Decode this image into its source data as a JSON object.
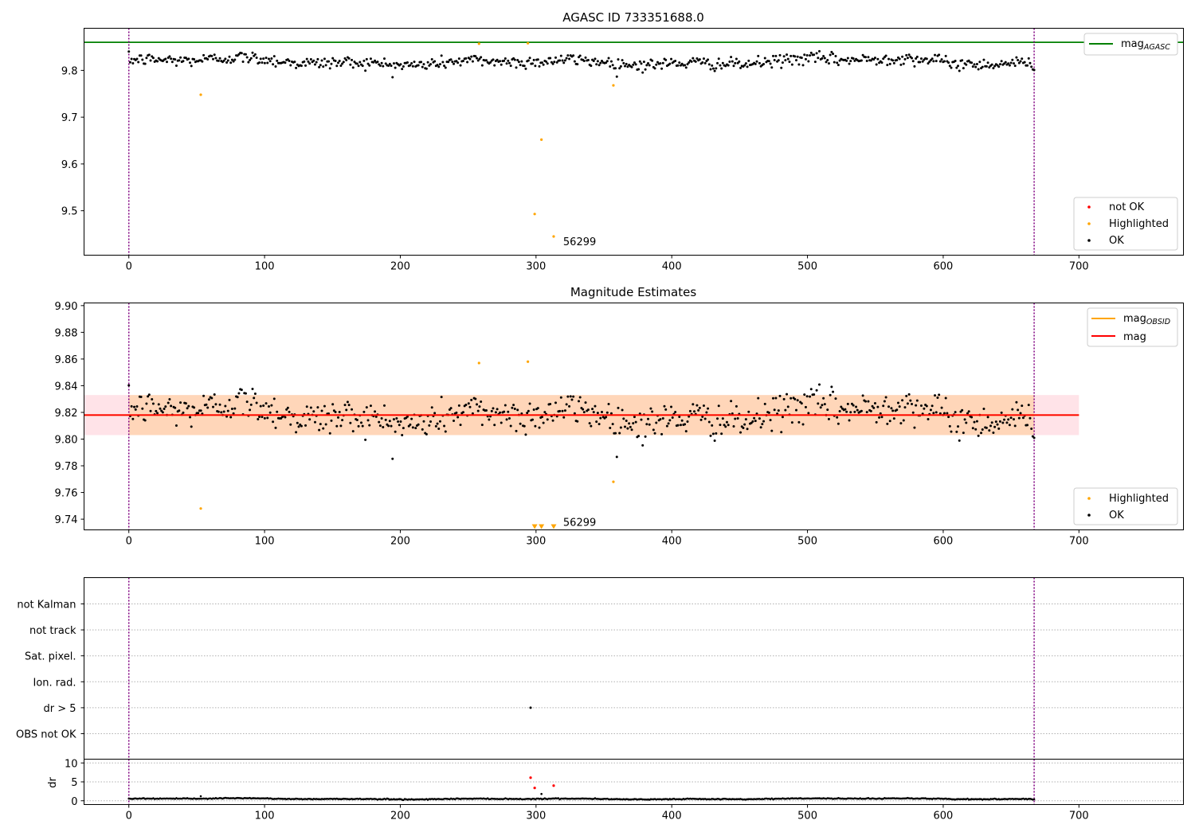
{
  "chart_data": [
    {
      "type": "scatter",
      "id": "agasc",
      "title": "AGASC ID 733351688.0",
      "xlim": [
        -33,
        777
      ],
      "ylim": [
        9.405,
        9.89
      ],
      "xticks": [
        0,
        100,
        200,
        300,
        400,
        500,
        600,
        700
      ],
      "yticks": [
        9.5,
        9.6,
        9.7,
        9.8
      ],
      "vlines": [
        0,
        667
      ],
      "hline": {
        "name": "mag_AGASC",
        "value": 9.86,
        "color": "#008000"
      },
      "annotation": {
        "text": "56299",
        "x": 320,
        "y": 9.435
      },
      "legend_lines": {
        "location": "upper right",
        "entries": [
          {
            "label": "mag",
            "sub": "AGASC",
            "color": "#008000"
          }
        ]
      },
      "legend_points": {
        "location": "lower right",
        "entries": [
          {
            "label": "not OK",
            "color": "#ff0000"
          },
          {
            "label": "Highlighted",
            "color": "#ffa500"
          },
          {
            "label": "OK",
            "color": "#000000"
          }
        ]
      },
      "ok_series": {
        "name": "OK",
        "n": 667,
        "x_start": 0,
        "x_end": 667,
        "mean": 9.818,
        "spread": 0.012
      },
      "highlighted": [
        {
          "x": 53,
          "y": 9.748
        },
        {
          "x": 258,
          "y": 9.857
        },
        {
          "x": 294,
          "y": 9.858
        },
        {
          "x": 299,
          "y": 9.493
        },
        {
          "x": 304,
          "y": 9.652
        },
        {
          "x": 313,
          "y": 9.445
        },
        {
          "x": 357,
          "y": 9.768
        }
      ]
    },
    {
      "type": "scatter",
      "id": "estimates",
      "title": "Magnitude Estimates",
      "xlim": [
        -33,
        777
      ],
      "ylim": [
        9.732,
        9.902
      ],
      "xticks": [
        0,
        100,
        200,
        300,
        400,
        500,
        600,
        700
      ],
      "yticks": [
        9.74,
        9.76,
        9.78,
        9.8,
        9.82,
        9.84,
        9.86,
        9.88,
        9.9
      ],
      "ytick_labels": [
        "9.74",
        "9.76",
        "9.78",
        "9.80",
        "9.82",
        "9.84",
        "9.86",
        "9.88",
        "9.90"
      ],
      "vlines": [
        0,
        667
      ],
      "mag_line": {
        "name": "mag",
        "value": 9.818,
        "color": "#ff0000",
        "x_range": [
          -33,
          700
        ]
      },
      "band": {
        "low": 9.803,
        "high": 9.833,
        "x_range": [
          -33,
          700
        ]
      },
      "obsid_band": {
        "low": 9.803,
        "high": 9.833,
        "x_range": [
          0,
          667
        ]
      },
      "annotation": {
        "text": "56299",
        "x": 320,
        "y": 9.738
      },
      "legend_lines": {
        "location": "upper right",
        "entries": [
          {
            "label": "mag",
            "sub": "OBSID",
            "color": "#ffa500"
          },
          {
            "label": "mag",
            "sub": "",
            "color": "#ff0000"
          }
        ]
      },
      "legend_points": {
        "location": "lower right",
        "entries": [
          {
            "label": "Highlighted",
            "color": "#ffa500"
          },
          {
            "label": "OK",
            "color": "#000000"
          }
        ]
      },
      "ok_series": {
        "name": "OK",
        "n": 667,
        "x_start": 0,
        "x_end": 667,
        "mean": 9.818,
        "spread": 0.012
      },
      "highlighted": [
        {
          "x": 53,
          "y": 9.748
        },
        {
          "x": 258,
          "y": 9.857
        },
        {
          "x": 294,
          "y": 9.858
        },
        {
          "x": 357,
          "y": 9.768
        }
      ],
      "offscale_markers": [
        {
          "x": 299
        },
        {
          "x": 304
        },
        {
          "x": 313
        }
      ]
    },
    {
      "type": "scatter",
      "id": "flags",
      "xlim": [
        -33,
        777
      ],
      "vlines": [
        0,
        667
      ],
      "categories": [
        "not Kalman",
        "not track",
        "Sat. pixel.",
        "Ion. rad.",
        "dr > 5",
        "OBS not OK"
      ],
      "points": [
        {
          "category": "dr > 5",
          "x": 296
        }
      ]
    },
    {
      "type": "scatter",
      "id": "dr",
      "ylabel": "dr",
      "xlim": [
        -33,
        777
      ],
      "ylim": [
        -1,
        11
      ],
      "xticks": [
        0,
        100,
        200,
        300,
        400,
        500,
        600,
        700
      ],
      "yticks": [
        0,
        5,
        10
      ],
      "vlines": [
        0,
        667
      ],
      "ok_series": {
        "name": "OK",
        "n": 667,
        "x_start": 0,
        "x_end": 667,
        "mean": 0.5,
        "spread": 0.2
      },
      "red_points": [
        {
          "x": 296,
          "y": 6.1
        },
        {
          "x": 299,
          "y": 3.4
        },
        {
          "x": 313,
          "y": 4.0
        }
      ],
      "black_outliers": [
        {
          "x": 53,
          "y": 1.2
        },
        {
          "x": 304,
          "y": 1.8
        }
      ]
    }
  ]
}
